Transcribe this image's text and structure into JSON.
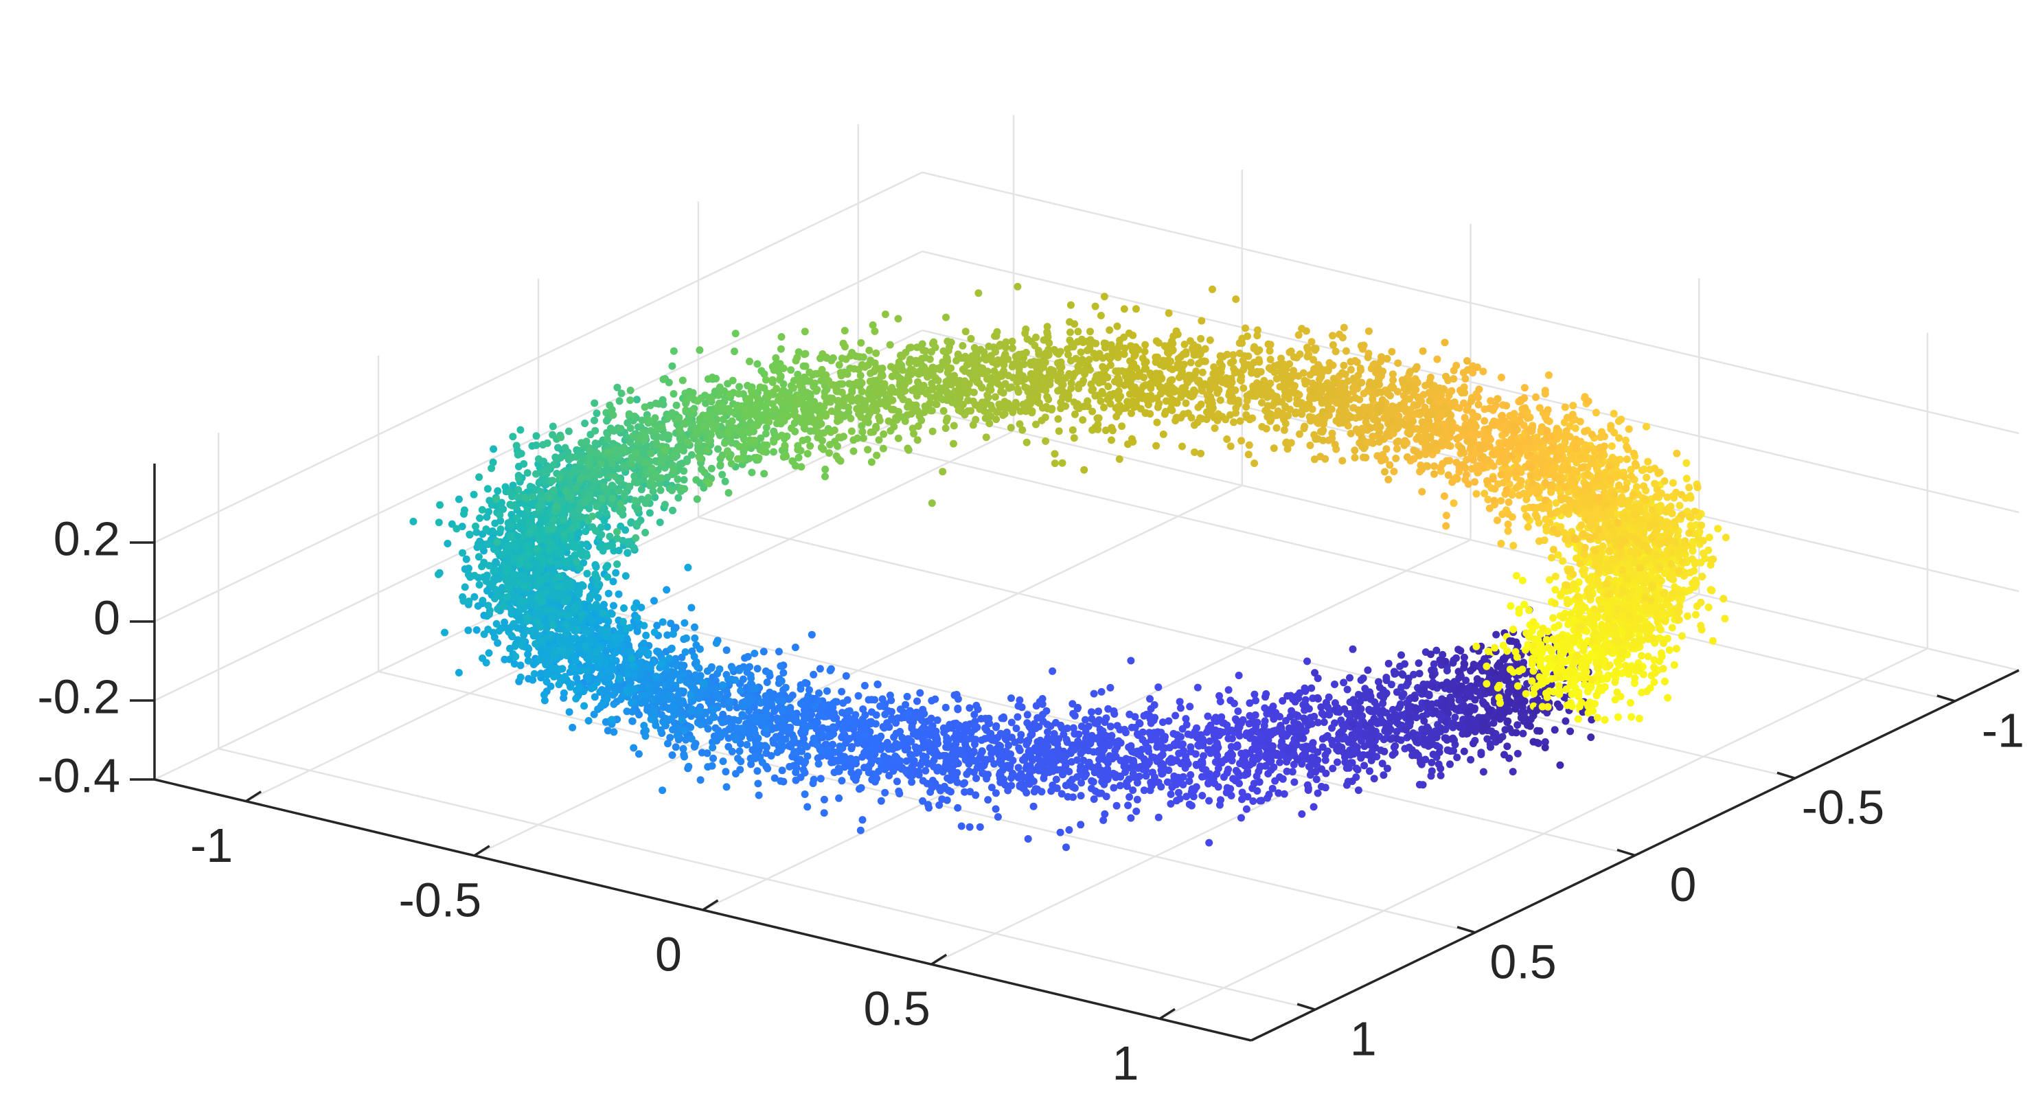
{
  "chart_data": {
    "type": "scatter",
    "variant": "scatter3d",
    "title": "",
    "xlabel": "",
    "ylabel": "",
    "zlabel": "",
    "xlim": [
      -1.2,
      1.2
    ],
    "ylim": [
      -1.2,
      1.2
    ],
    "zlim": [
      -0.4,
      0.4
    ],
    "x_ticks": [
      -1,
      -0.5,
      0,
      0.5,
      1
    ],
    "y_ticks": [
      -1,
      -0.5,
      0,
      0.5,
      1
    ],
    "z_ticks": [
      -0.4,
      -0.2,
      0,
      0.2
    ],
    "x_tick_labels": [
      "-1",
      "-0.5",
      "0",
      "0.5",
      "1"
    ],
    "y_tick_labels": [
      "-1",
      "-0.5",
      "0",
      "0.5",
      "1"
    ],
    "z_tick_labels": [
      "-0.4",
      "-0.2",
      "0",
      "0.2"
    ],
    "grid": true,
    "colormap": "parula",
    "colormap_stops": [
      "#3e26a8",
      "#4744e8",
      "#2f70fd",
      "#12a6e2",
      "#1cbbb3",
      "#6ccc57",
      "#c4ba24",
      "#fdbc3d",
      "#f9e42a",
      "#f9fb15"
    ],
    "color_by": "angle",
    "series": [
      {
        "shape": "noisy ring",
        "center": [
          0,
          0,
          0
        ],
        "radius": 1.0,
        "radial_spread": 0.06,
        "z_spread": 0.06,
        "approx_point_count": 10000
      }
    ]
  }
}
